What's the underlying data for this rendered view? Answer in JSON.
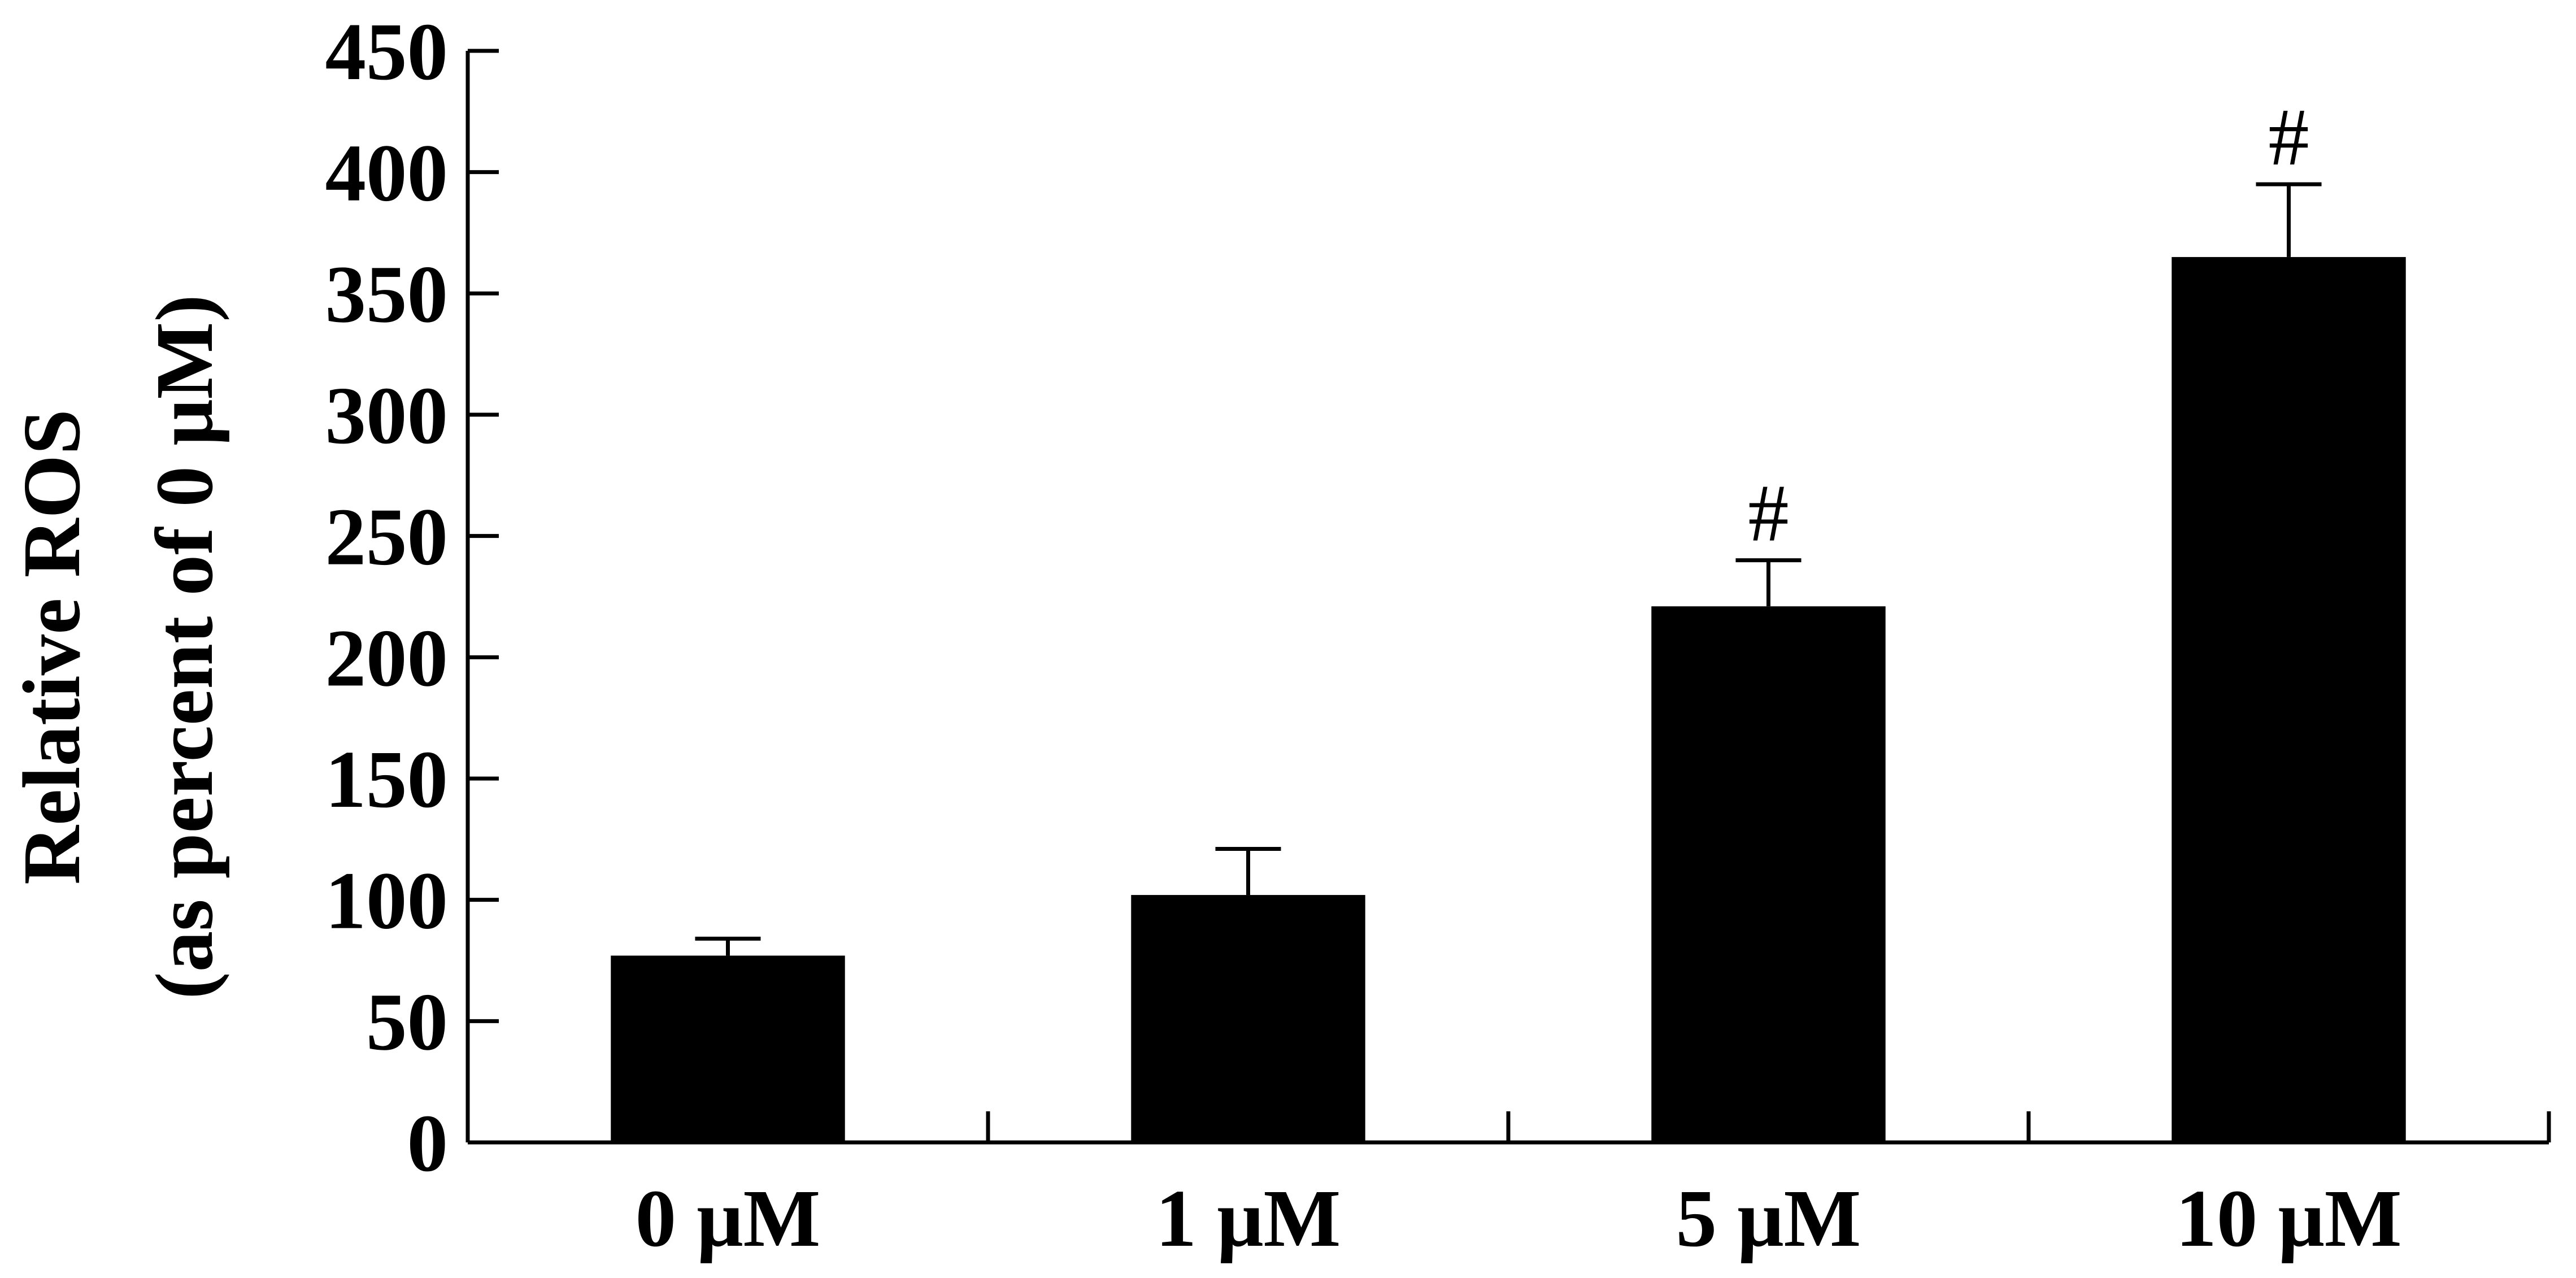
{
  "chart_data": {
    "type": "bar",
    "title": "",
    "xlabel": "",
    "ylabel_line1": "Relative ROS",
    "ylabel_line2": "(as percent of 0 μM)",
    "categories": [
      "0 μM",
      "1 μM",
      "5 μM",
      "10 μM"
    ],
    "series": [
      {
        "values": [
          77,
          102,
          221,
          365
        ],
        "errors": [
          7,
          19,
          19,
          30
        ],
        "annotations": [
          "",
          "",
          "#",
          "#"
        ]
      }
    ],
    "ylim": [
      0,
      450
    ],
    "yticks": [
      0,
      50,
      100,
      150,
      200,
      250,
      300,
      350,
      400,
      450
    ],
    "grid": false,
    "legend": "none",
    "bar_color": "#000000"
  }
}
